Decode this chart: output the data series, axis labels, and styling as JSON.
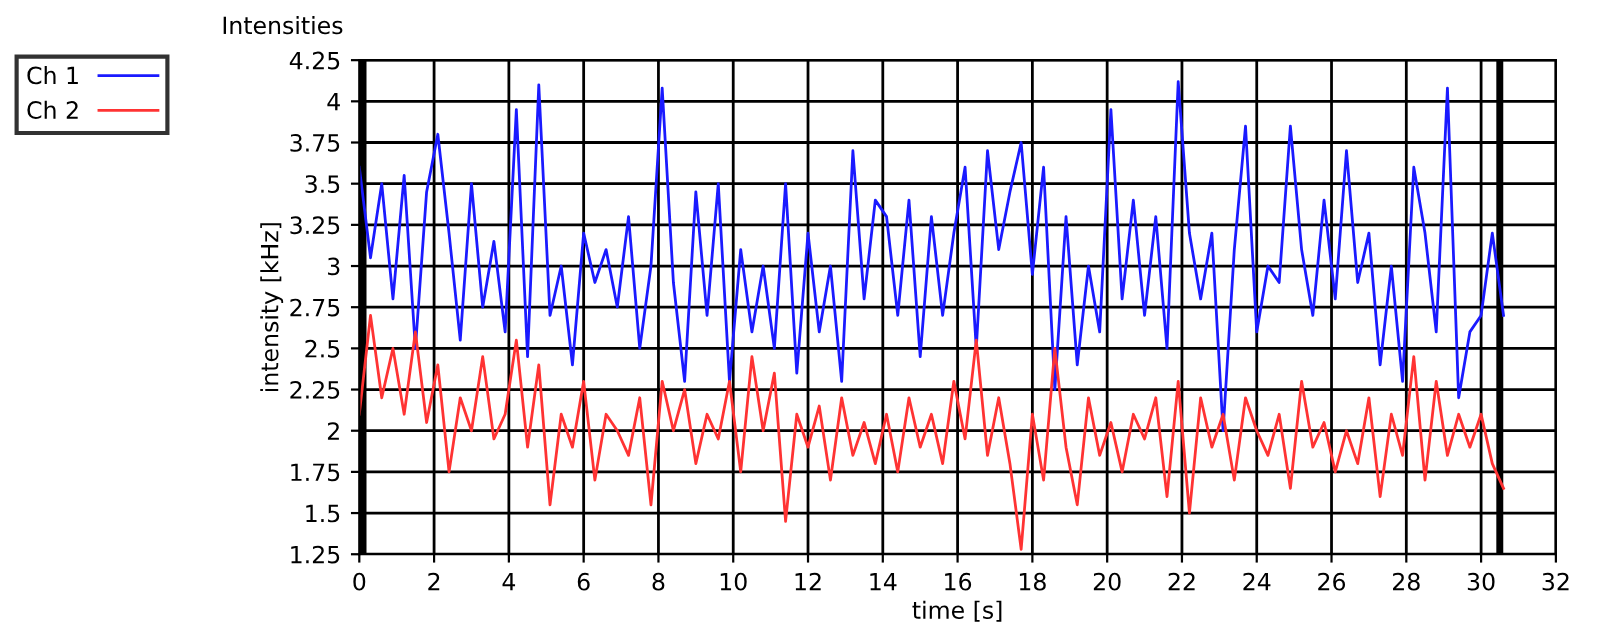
{
  "chart_data": {
    "type": "line",
    "title": "Intensities",
    "xlabel": "time [s]",
    "ylabel": "intensity [kHz]",
    "x": [
      0.0,
      0.3,
      0.6,
      0.9,
      1.2,
      1.5,
      1.8,
      2.1,
      2.4,
      2.7,
      3.0,
      3.3,
      3.6,
      3.9,
      4.2,
      4.5,
      4.8,
      5.1,
      5.4,
      5.7,
      6.0,
      6.3,
      6.6,
      6.9,
      7.2,
      7.5,
      7.8,
      8.1,
      8.4,
      8.7,
      9.0,
      9.3,
      9.6,
      9.9,
      10.2,
      10.5,
      10.8,
      11.1,
      11.4,
      11.7,
      12.0,
      12.3,
      12.6,
      12.9,
      13.2,
      13.5,
      13.8,
      14.1,
      14.4,
      14.7,
      15.0,
      15.3,
      15.6,
      15.9,
      16.2,
      16.5,
      16.8,
      17.1,
      17.4,
      17.7,
      18.0,
      18.3,
      18.6,
      18.9,
      19.2,
      19.5,
      19.8,
      20.1,
      20.4,
      20.7,
      21.0,
      21.3,
      21.6,
      21.9,
      22.2,
      22.5,
      22.8,
      23.1,
      23.4,
      23.7,
      24.0,
      24.3,
      24.6,
      24.9,
      25.2,
      25.5,
      25.8,
      26.1,
      26.4,
      26.7,
      27.0,
      27.3,
      27.6,
      27.9,
      28.2,
      28.5,
      28.8,
      29.1,
      29.4,
      29.7,
      30.0,
      30.3,
      30.6
    ],
    "series": [
      {
        "name": "Ch 1",
        "color": "#1a1aff",
        "values": [
          3.6,
          3.05,
          3.5,
          2.8,
          3.55,
          2.5,
          3.45,
          3.8,
          3.2,
          2.55,
          3.5,
          2.75,
          3.15,
          2.6,
          3.95,
          2.45,
          4.1,
          2.7,
          3.0,
          2.4,
          3.2,
          2.9,
          3.1,
          2.75,
          3.3,
          2.5,
          3.0,
          4.08,
          2.9,
          2.3,
          3.45,
          2.7,
          3.5,
          2.3,
          3.1,
          2.6,
          3.0,
          2.5,
          3.5,
          2.35,
          3.2,
          2.6,
          3.0,
          2.3,
          3.7,
          2.8,
          3.4,
          3.3,
          2.7,
          3.4,
          2.45,
          3.3,
          2.7,
          3.2,
          3.6,
          2.5,
          3.7,
          3.1,
          3.45,
          3.75,
          2.95,
          3.6,
          2.25,
          3.3,
          2.4,
          3.0,
          2.6,
          3.95,
          2.8,
          3.4,
          2.7,
          3.3,
          2.5,
          4.12,
          3.2,
          2.8,
          3.2,
          2.0,
          3.1,
          3.85,
          2.6,
          3.0,
          2.9,
          3.85,
          3.1,
          2.7,
          3.4,
          2.8,
          3.7,
          2.9,
          3.2,
          2.4,
          3.0,
          2.3,
          3.6,
          3.2,
          2.6,
          4.08,
          2.2,
          2.6,
          2.7,
          3.2,
          2.7
        ]
      },
      {
        "name": "Ch 2",
        "color": "#ff3333",
        "values": [
          2.1,
          2.7,
          2.2,
          2.5,
          2.1,
          2.6,
          2.05,
          2.4,
          1.75,
          2.2,
          2.0,
          2.45,
          1.95,
          2.1,
          2.55,
          1.9,
          2.4,
          1.55,
          2.1,
          1.9,
          2.3,
          1.7,
          2.1,
          2.0,
          1.85,
          2.2,
          1.55,
          2.3,
          2.0,
          2.25,
          1.8,
          2.1,
          1.95,
          2.3,
          1.75,
          2.45,
          2.0,
          2.35,
          1.45,
          2.1,
          1.9,
          2.15,
          1.7,
          2.2,
          1.85,
          2.05,
          1.8,
          2.1,
          1.75,
          2.2,
          1.9,
          2.1,
          1.8,
          2.3,
          1.95,
          2.55,
          1.85,
          2.2,
          1.8,
          1.28,
          2.1,
          1.7,
          2.5,
          1.9,
          1.55,
          2.2,
          1.85,
          2.05,
          1.75,
          2.1,
          1.95,
          2.2,
          1.6,
          2.3,
          1.5,
          2.2,
          1.9,
          2.1,
          1.7,
          2.2,
          2.0,
          1.85,
          2.1,
          1.65,
          2.3,
          1.9,
          2.05,
          1.75,
          2.0,
          1.8,
          2.2,
          1.6,
          2.1,
          1.85,
          2.45,
          1.7,
          2.3,
          1.85,
          2.1,
          1.9,
          2.1,
          1.8,
          1.65
        ]
      }
    ],
    "xlim": [
      0,
      32
    ],
    "xticks": [
      0,
      2,
      4,
      6,
      8,
      10,
      12,
      14,
      16,
      18,
      20,
      22,
      24,
      26,
      28,
      30,
      32
    ],
    "ylim": [
      1.25,
      4.25
    ],
    "yticks": [
      1.25,
      1.5,
      1.75,
      2,
      2.25,
      2.5,
      2.75,
      3,
      3.25,
      3.5,
      3.75,
      4,
      4.25
    ],
    "ref_lines": [
      {
        "axis": "x",
        "value": 0.1,
        "color": "#000000"
      },
      {
        "axis": "x",
        "value": 30.5,
        "color": "#000000"
      }
    ],
    "grid": true,
    "legend": "top left",
    "marker": "none",
    "line_style": "solid"
  }
}
